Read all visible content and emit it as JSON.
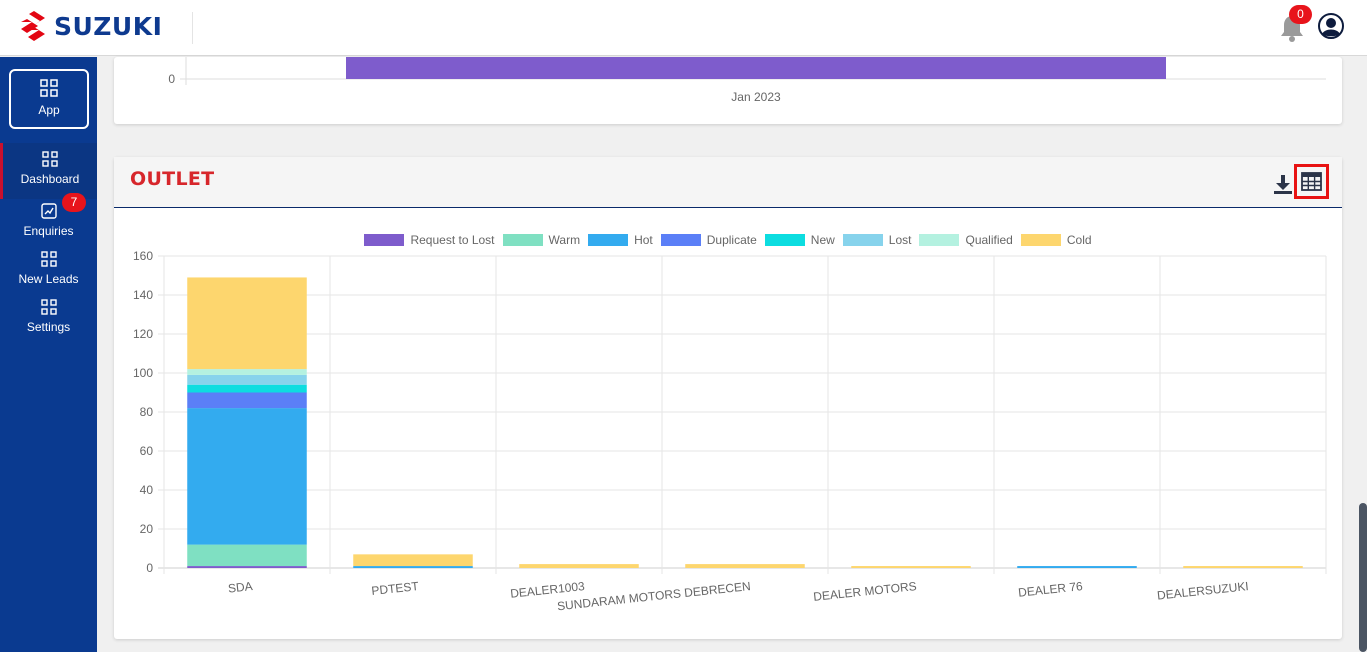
{
  "header": {
    "brand": "SUZUKI",
    "notification_count": "0"
  },
  "sidebar": {
    "app_label": "App",
    "items": [
      {
        "label": "Dashboard",
        "icon": "grid-icon",
        "active": true
      },
      {
        "label": "Enquiries",
        "icon": "chart-icon",
        "badge": "7"
      },
      {
        "label": "New Leads",
        "icon": "grid-icon"
      },
      {
        "label": "Settings",
        "icon": "grid-icon"
      }
    ]
  },
  "top_chart": {
    "y_tick": "0",
    "x_label": "Jan 2023",
    "bar_color": "#7e5ccc"
  },
  "outlet": {
    "title": "OUTLET",
    "download_icon": "download-icon",
    "table_icon": "table-icon"
  },
  "chart_data": {
    "type": "bar",
    "stacked": true,
    "categories": [
      "SDA",
      "PDTEST",
      "DEALER1003",
      "SUNDARAM MOTORS DEBRECEN",
      "DEALER MOTORS",
      "DEALER 76",
      "DEALERSUZUKI"
    ],
    "series": [
      {
        "name": "Request to Lost",
        "color": "#7e5ccc",
        "values": [
          1,
          0,
          0,
          0,
          0,
          0,
          0
        ]
      },
      {
        "name": "Warm",
        "color": "#7fe0c2",
        "values": [
          11,
          0,
          0,
          0,
          0,
          0,
          0
        ]
      },
      {
        "name": "Hot",
        "color": "#33abef",
        "values": [
          70,
          1,
          0,
          0,
          0,
          1,
          0
        ]
      },
      {
        "name": "Duplicate",
        "color": "#5b7ff7",
        "values": [
          8,
          0,
          0,
          0,
          0,
          0,
          0
        ]
      },
      {
        "name": "New",
        "color": "#0ddde0",
        "values": [
          4,
          0,
          0,
          0,
          0,
          0,
          0
        ]
      },
      {
        "name": "Lost",
        "color": "#87d3ec",
        "values": [
          5,
          0,
          0,
          0,
          0,
          0,
          0
        ]
      },
      {
        "name": "Qualified",
        "color": "#b4f1e0",
        "values": [
          3,
          0,
          0,
          0,
          0,
          0,
          0
        ]
      },
      {
        "name": "Cold",
        "color": "#fdd66e",
        "values": [
          47,
          6,
          2,
          2,
          1,
          0,
          1
        ]
      }
    ],
    "yticks": [
      0,
      20,
      40,
      60,
      80,
      100,
      120,
      140,
      160
    ],
    "ylim": [
      0,
      160
    ],
    "grid": true,
    "legend": "top-center"
  }
}
